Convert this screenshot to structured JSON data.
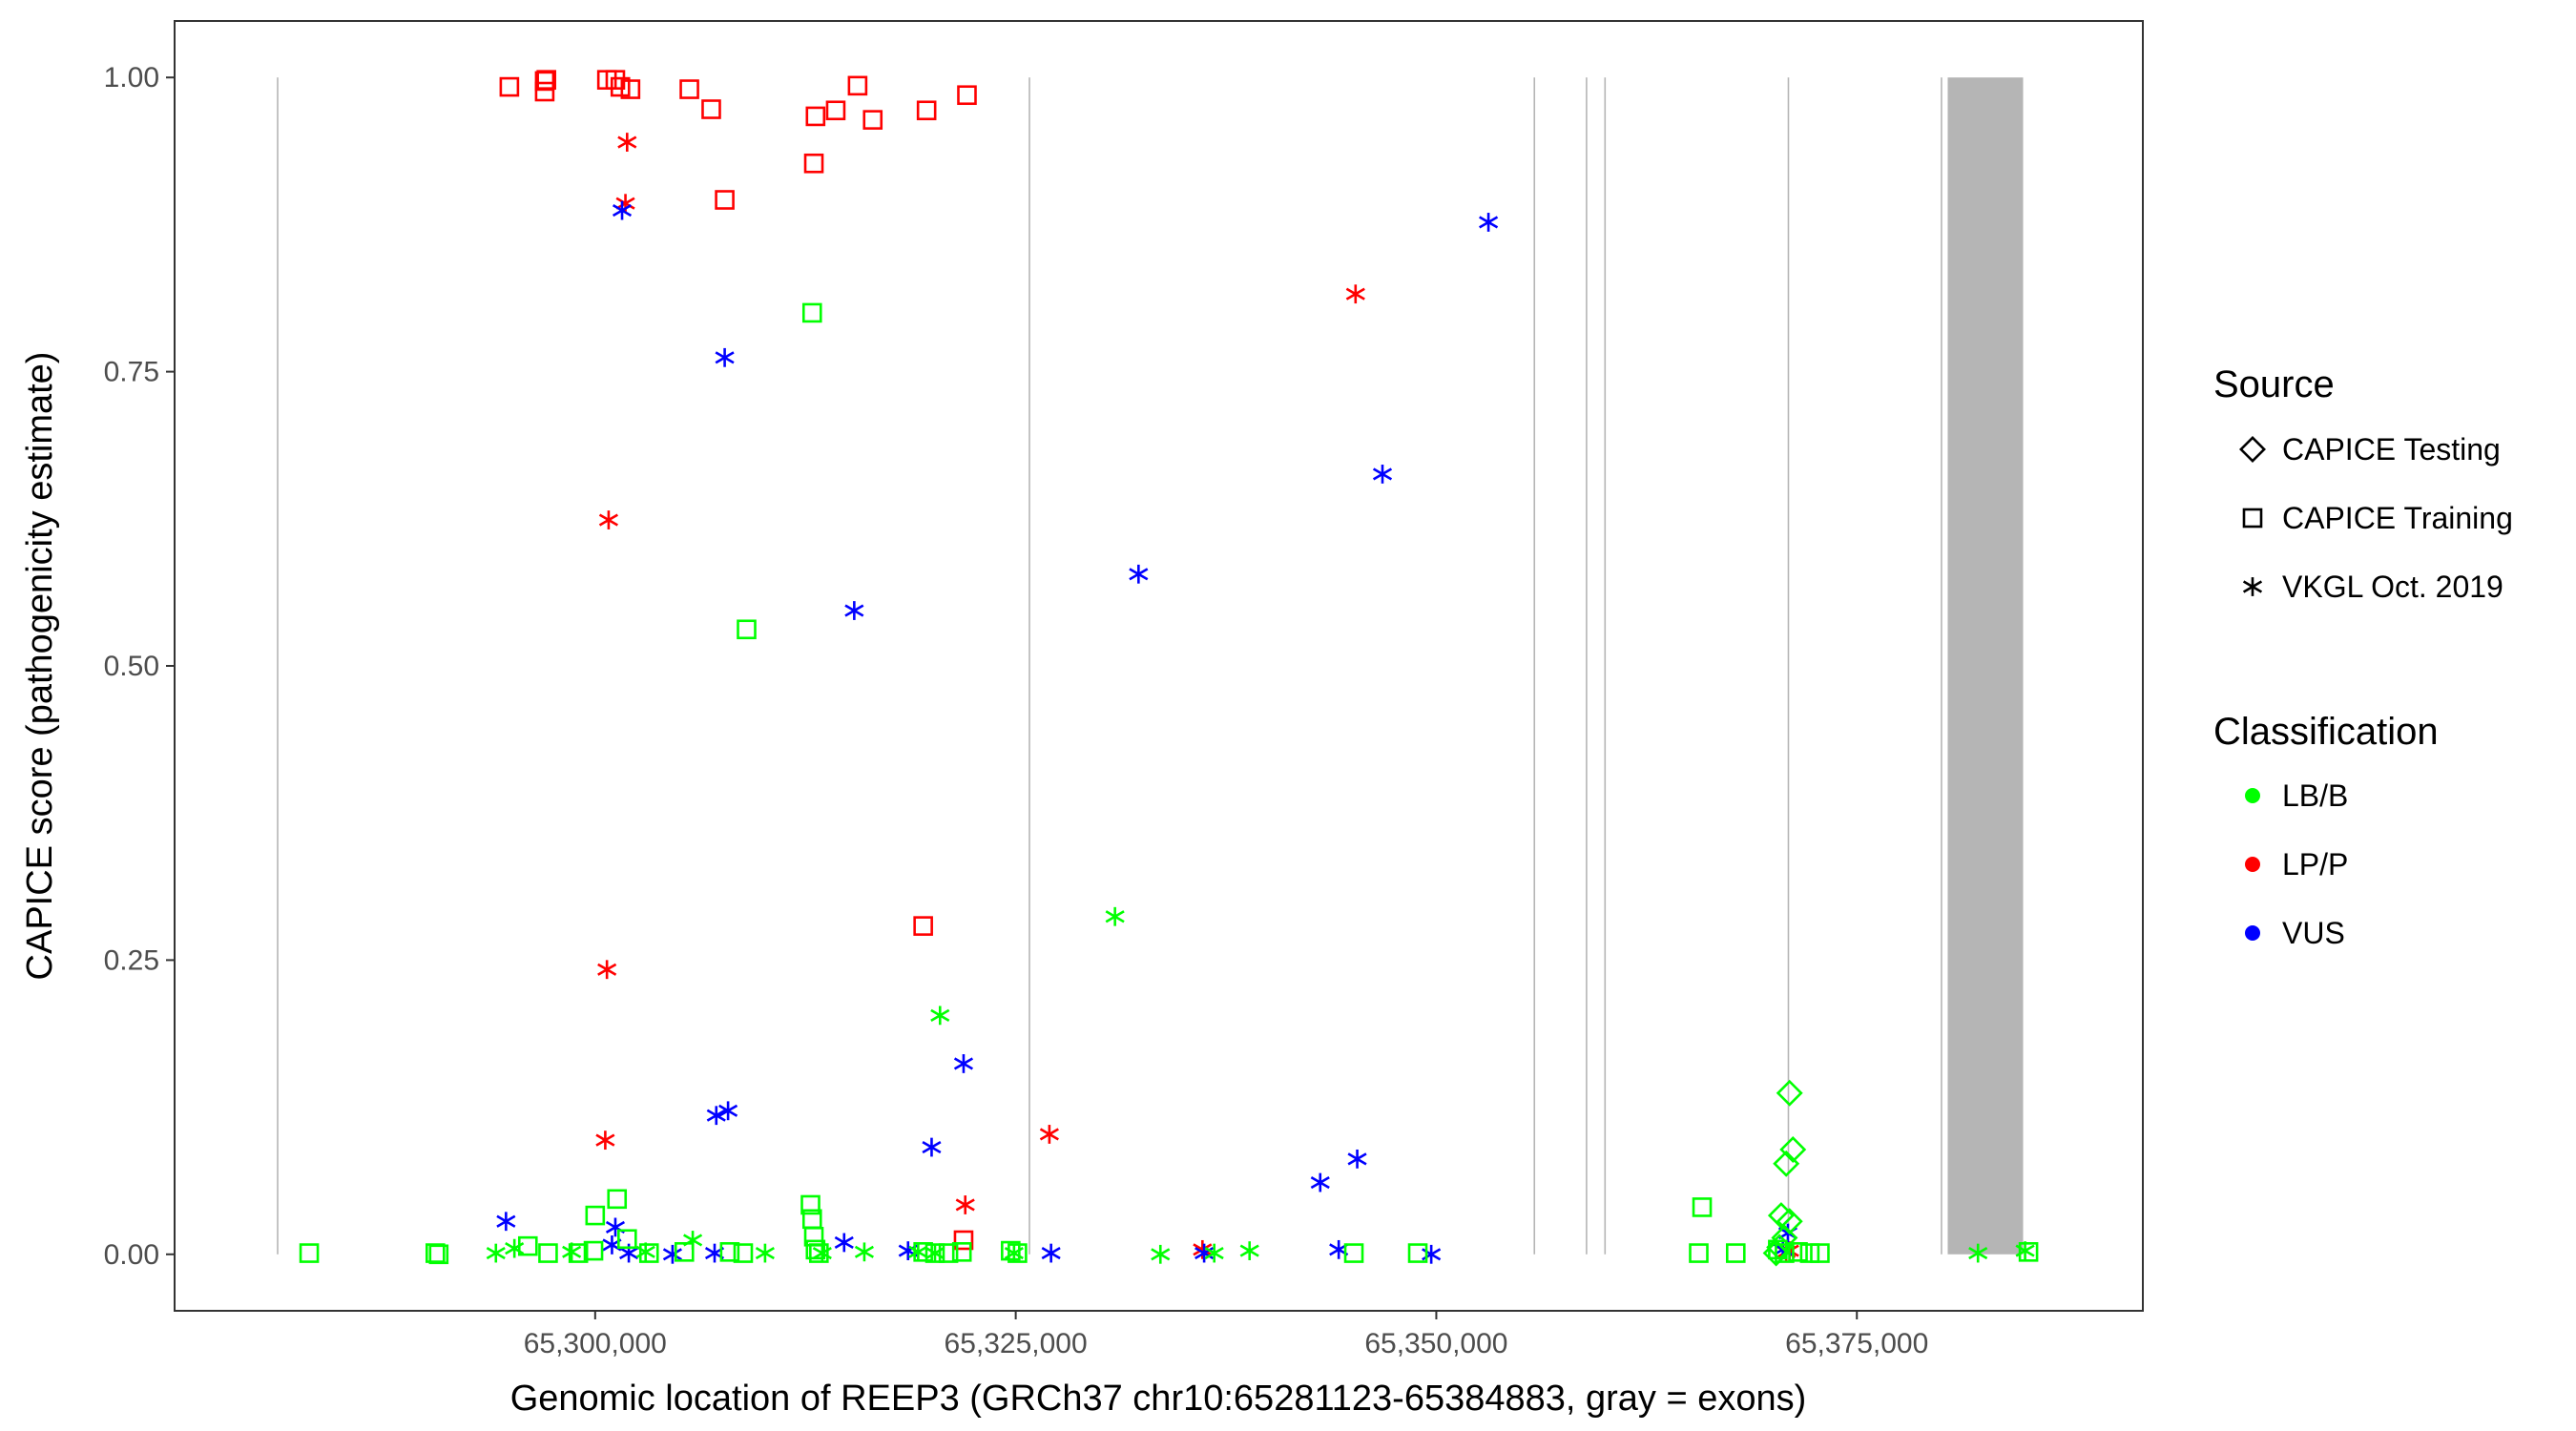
{
  "chart_data": {
    "type": "scatter",
    "title": "",
    "xlabel": "Genomic location of REEP3 (GRCh37 chr10:65281123-65384883, gray = exons)",
    "ylabel": "CAPICE score (pathogenicity estimate)",
    "xlim": [
      65275000,
      65392000
    ],
    "ylim": [
      -0.048,
      1.048
    ],
    "x_ticks": [
      65300000,
      65325000,
      65350000,
      65375000
    ],
    "x_tick_labels": [
      "65,300,000",
      "65,325,000",
      "65,350,000",
      "65,375,000"
    ],
    "y_ticks": [
      0,
      0.25,
      0.5,
      0.75,
      1
    ],
    "y_tick_labels": [
      "0.00",
      "0.25",
      "0.50",
      "0.75",
      "1.00"
    ],
    "grid": false,
    "exon_color": "#b5b5b5",
    "exons": [
      {
        "start": 65281100,
        "end": 65281150
      },
      {
        "start": 65325800,
        "end": 65325830
      },
      {
        "start": 65355800,
        "end": 65355860
      },
      {
        "start": 65358900,
        "end": 65358960
      },
      {
        "start": 65360000,
        "end": 65360060
      },
      {
        "start": 65370900,
        "end": 65370960
      },
      {
        "start": 65380000,
        "end": 65380060
      },
      {
        "start": 65380400,
        "end": 65384883
      }
    ],
    "legend": {
      "position": "right",
      "source_title": "Source",
      "source_items": [
        {
          "label": "CAPICE Testing",
          "shape": "diamond"
        },
        {
          "label": "CAPICE Training",
          "shape": "square"
        },
        {
          "label": "VKGL Oct. 2019",
          "shape": "asterisk"
        }
      ],
      "class_title": "Classification",
      "class_items": [
        {
          "label": "LB/B",
          "color": "#00ff00"
        },
        {
          "label": "LP/P",
          "color": "#ff0000"
        },
        {
          "label": "VUS",
          "color": "#0000ff"
        }
      ]
    },
    "series": [
      {
        "source": "CAPICE Training",
        "classification": "LP/P",
        "points": [
          [
            65294900,
            0.992
          ],
          [
            65297000,
            0.997
          ],
          [
            65297000,
            0.988
          ],
          [
            65297100,
            0.998
          ],
          [
            65300700,
            0.998
          ],
          [
            65301200,
            0.998
          ],
          [
            65301500,
            0.992
          ],
          [
            65302100,
            0.99
          ],
          [
            65305600,
            0.99
          ],
          [
            65306900,
            0.973
          ],
          [
            65313100,
            0.967
          ],
          [
            65314300,
            0.972
          ],
          [
            65315600,
            0.993
          ],
          [
            65316500,
            0.964
          ],
          [
            65319700,
            0.972
          ],
          [
            65322100,
            0.985
          ],
          [
            65313000,
            0.927
          ],
          [
            65307700,
            0.896
          ],
          [
            65319500,
            0.279
          ],
          [
            65321900,
            0.012
          ]
        ]
      },
      {
        "source": "VKGL Oct. 2019",
        "classification": "LP/P",
        "points": [
          [
            65301900,
            0.945
          ],
          [
            65301800,
            0.893
          ],
          [
            65300800,
            0.624
          ],
          [
            65300700,
            0.242
          ],
          [
            65300600,
            0.097
          ],
          [
            65327000,
            0.102
          ],
          [
            65322000,
            0.042
          ],
          [
            65345200,
            0.816
          ],
          [
            65336100,
            0.004
          ],
          [
            65370800,
            0.002
          ],
          [
            65371000,
            0.003
          ]
        ]
      },
      {
        "source": "VKGL Oct. 2019",
        "classification": "VUS",
        "points": [
          [
            65301600,
            0.887
          ],
          [
            65307700,
            0.762
          ],
          [
            65315400,
            0.547
          ],
          [
            65332300,
            0.578
          ],
          [
            65353100,
            0.877
          ],
          [
            65346800,
            0.663
          ],
          [
            65321900,
            0.162
          ],
          [
            65320000,
            0.091
          ],
          [
            65307900,
            0.122
          ],
          [
            65307200,
            0.118
          ],
          [
            65343100,
            0.061
          ],
          [
            65345300,
            0.081
          ],
          [
            65294700,
            0.028
          ],
          [
            65301200,
            0.023
          ],
          [
            65301000,
            0.008
          ],
          [
            65314800,
            0.01
          ],
          [
            65318600,
            0.003
          ],
          [
            65327100,
            0.001
          ],
          [
            65336200,
            0.001
          ],
          [
            65344200,
            0.004
          ],
          [
            65349700,
            0.0
          ],
          [
            65302000,
            0.001
          ],
          [
            65304600,
            0.0
          ],
          [
            65307100,
            0.001
          ],
          [
            65370900,
            0.018
          ],
          [
            65370600,
            0.004
          ]
        ]
      },
      {
        "source": "VKGL Oct. 2019",
        "classification": "LB/B",
        "points": [
          [
            65330900,
            0.287
          ],
          [
            65320500,
            0.203
          ],
          [
            65305800,
            0.012
          ],
          [
            65294100,
            0.001
          ],
          [
            65295200,
            0.005
          ],
          [
            65298600,
            0.002
          ],
          [
            65303000,
            0.002
          ],
          [
            65310100,
            0.001
          ],
          [
            65313500,
            0.001
          ],
          [
            65316000,
            0.002
          ],
          [
            65319200,
            0.002
          ],
          [
            65320200,
            0.001
          ],
          [
            65324900,
            0.001
          ],
          [
            65333600,
            0.0
          ],
          [
            65336800,
            0.001
          ],
          [
            65338900,
            0.003
          ],
          [
            65382200,
            0.001
          ],
          [
            65385000,
            0.003
          ]
        ]
      },
      {
        "source": "CAPICE Training",
        "classification": "LB/B",
        "points": [
          [
            65312900,
            0.8
          ],
          [
            65309000,
            0.531
          ],
          [
            65283000,
            0.001
          ],
          [
            65290500,
            0.001
          ],
          [
            65290700,
            0.0
          ],
          [
            65296000,
            0.007
          ],
          [
            65297200,
            0.001
          ],
          [
            65299000,
            0.001
          ],
          [
            65299900,
            0.003
          ],
          [
            65301300,
            0.047
          ],
          [
            65300000,
            0.033
          ],
          [
            65301900,
            0.013
          ],
          [
            65303200,
            0.001
          ],
          [
            65305300,
            0.002
          ],
          [
            65308000,
            0.002
          ],
          [
            65308800,
            0.001
          ],
          [
            65312800,
            0.042
          ],
          [
            65312900,
            0.03
          ],
          [
            65313000,
            0.015
          ],
          [
            65313100,
            0.004
          ],
          [
            65313300,
            0.001
          ],
          [
            65319500,
            0.002
          ],
          [
            65320200,
            0.001
          ],
          [
            65321000,
            0.001
          ],
          [
            65321800,
            0.002
          ],
          [
            65324700,
            0.003
          ],
          [
            65325100,
            0.001
          ],
          [
            65345100,
            0.001
          ],
          [
            65348900,
            0.001
          ],
          [
            65365800,
            0.04
          ],
          [
            65365600,
            0.001
          ],
          [
            65367800,
            0.001
          ],
          [
            65370300,
            0.004
          ],
          [
            65370700,
            0.001
          ],
          [
            65371500,
            0.002
          ],
          [
            65372200,
            0.001
          ],
          [
            65372800,
            0.001
          ],
          [
            65385200,
            0.002
          ]
        ]
      },
      {
        "source": "CAPICE Testing",
        "classification": "LB/B",
        "points": [
          [
            65371000,
            0.137
          ],
          [
            65371200,
            0.089
          ],
          [
            65370800,
            0.077
          ],
          [
            65371000,
            0.028
          ],
          [
            65370500,
            0.033
          ],
          [
            65370700,
            0.014
          ],
          [
            65370400,
            0.006
          ],
          [
            65370200,
            0.001
          ]
        ]
      }
    ]
  }
}
